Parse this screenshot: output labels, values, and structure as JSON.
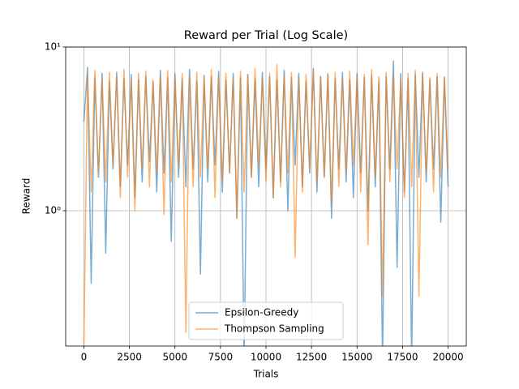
{
  "chart_data": {
    "type": "line",
    "title": "Reward per Trial (Log Scale)",
    "x_label": "Trials",
    "y_label": "Reward",
    "x": [
      0,
      200,
      400,
      600,
      800,
      1000,
      1200,
      1400,
      1600,
      1800,
      2000,
      2200,
      2400,
      2600,
      2800,
      3000,
      3200,
      3400,
      3600,
      3800,
      4000,
      4200,
      4400,
      4600,
      4800,
      5000,
      5200,
      5400,
      5600,
      5800,
      6000,
      6200,
      6400,
      6600,
      6800,
      7000,
      7200,
      7400,
      7600,
      7800,
      8000,
      8200,
      8400,
      8600,
      8800,
      9000,
      9200,
      9400,
      9600,
      9800,
      10000,
      10200,
      10400,
      10600,
      10800,
      11000,
      11200,
      11400,
      11600,
      11800,
      12000,
      12200,
      12400,
      12600,
      12800,
      13000,
      13200,
      13400,
      13600,
      13800,
      14000,
      14200,
      14400,
      14600,
      14800,
      15000,
      15200,
      15400,
      15600,
      15800,
      16000,
      16200,
      16400,
      16600,
      16800,
      17000,
      17200,
      17400,
      17600,
      17800,
      18000,
      18200,
      18400,
      18600,
      18800,
      19000,
      19200,
      19400,
      19600,
      19800,
      20000
    ],
    "series": [
      {
        "name": "Epsilon-Greedy",
        "color": "#1f77b4",
        "values": [
          3.5,
          7.5,
          0.36,
          6.5,
          1.6,
          6.9,
          0.55,
          6.2,
          1.8,
          7.0,
          1.4,
          6.4,
          1.9,
          6.8,
          1.2,
          6.3,
          1.5,
          6.6,
          2.0,
          6.1,
          1.3,
          7.2,
          1.7,
          6.5,
          0.65,
          6.9,
          1.6,
          6.4,
          1.4,
          7.3,
          1.8,
          6.2,
          0.41,
          6.7,
          1.5,
          6.6,
          1.9,
          7.1,
          1.3,
          6.3,
          1.7,
          6.9,
          0.9,
          6.5,
          0.12,
          6.8,
          1.6,
          6.4,
          1.4,
          7.0,
          1.8,
          6.6,
          1.2,
          6.3,
          1.5,
          7.2,
          1.0,
          6.5,
          1.9,
          6.9,
          1.4,
          6.2,
          1.7,
          7.4,
          1.3,
          6.6,
          1.6,
          6.8,
          0.9,
          6.4,
          1.8,
          7.0,
          1.5,
          6.3,
          1.2,
          6.9,
          1.7,
          6.5,
          1.0,
          6.7,
          1.4,
          6.2,
          0.12,
          6.6,
          1.8,
          8.2,
          0.45,
          6.9,
          1.3,
          6.4,
          0.12,
          6.8,
          1.6,
          7.0,
          1.5,
          6.3,
          1.8,
          6.6,
          0.85,
          6.5,
          1.4
        ]
      },
      {
        "name": "Thompson Sampling",
        "color": "#ff7f0e",
        "values": [
          0.15,
          6.8,
          1.3,
          7.2,
          1.7,
          6.5,
          1.5,
          7.0,
          1.9,
          6.6,
          1.2,
          7.3,
          1.6,
          6.4,
          1.0,
          6.9,
          1.8,
          7.1,
          1.4,
          6.3,
          1.7,
          6.8,
          0.95,
          7.2,
          1.5,
          6.5,
          1.9,
          6.9,
          0.18,
          6.7,
          1.4,
          7.0,
          1.6,
          6.4,
          1.8,
          7.3,
          1.2,
          6.6,
          1.5,
          6.9,
          1.7,
          6.5,
          0.9,
          7.1,
          1.3,
          6.8,
          1.6,
          7.4,
          1.9,
          6.4,
          1.5,
          6.9,
          1.2,
          7.8,
          1.4,
          6.7,
          1.7,
          7.0,
          0.52,
          6.5,
          1.3,
          6.8,
          1.8,
          7.2,
          1.5,
          6.6,
          1.6,
          6.9,
          1.1,
          7.0,
          1.4,
          6.4,
          1.7,
          7.1,
          1.9,
          6.5,
          1.3,
          6.8,
          0.62,
          7.3,
          1.6,
          6.6,
          0.3,
          7.0,
          1.5,
          6.7,
          1.8,
          6.4,
          1.2,
          6.9,
          1.4,
          7.2,
          0.3,
          6.8,
          1.7,
          6.5,
          1.3,
          6.9,
          1.6,
          6.6,
          1.8
        ]
      }
    ],
    "xlim": [
      -1000,
      21000
    ],
    "ylim": [
      0.149,
      10
    ],
    "y_scale": "log",
    "xticks": [
      0,
      2500,
      5000,
      7500,
      10000,
      12500,
      15000,
      17500,
      20000
    ],
    "yticks": [
      {
        "value": 1,
        "label": "10⁰"
      },
      {
        "value": 10,
        "label": "10¹"
      }
    ],
    "grid": true,
    "legend": "lower center"
  }
}
